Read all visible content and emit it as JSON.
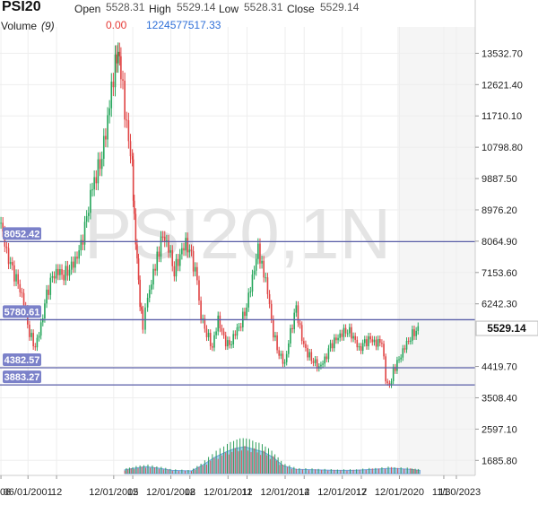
{
  "chart_data": {
    "type": "candlestick",
    "symbol": "PSI20",
    "watermark": "PSI20,1N",
    "ohlc_labels": {
      "open": "Open",
      "high": "High",
      "low": "Low",
      "close": "Close"
    },
    "ohlc_values": {
      "open": "5528.31",
      "high": "5529.14",
      "low": "5528.31",
      "close": "5529.14"
    },
    "volume_label": "Volume",
    "volume_period": "(9)",
    "volume_values": {
      "current": "0.00",
      "average": "1224577517.33"
    },
    "last_price": "5529.14",
    "y_ticks": [
      "13532.70",
      "12621.40",
      "11710.10",
      "10798.80",
      "9887.50",
      "8976.20",
      "8064.90",
      "7153.60",
      "6242.30",
      "4419.70",
      "3508.40",
      "2597.10",
      "1685.80"
    ],
    "ylim": [
      1250,
      14300
    ],
    "x_ticks": [
      {
        "label": "06",
        "date": 2000.0
      },
      {
        "label": "06/01/2001",
        "date": 2001.42
      },
      {
        "label": "12",
        "date": 2002.92
      },
      {
        "label": "12/01/2005",
        "date": 2005.92
      },
      {
        "label": "12",
        "date": 2006.92
      },
      {
        "label": "12/01/2008",
        "date": 2008.92
      },
      {
        "label": "12",
        "date": 2009.92
      },
      {
        "label": "12/01/2011",
        "date": 2011.92
      },
      {
        "label": "12",
        "date": 2012.92
      },
      {
        "label": "12/01/2014",
        "date": 2014.92
      },
      {
        "label": "12",
        "date": 2015.92
      },
      {
        "label": "12/01/2017",
        "date": 2017.92
      },
      {
        "label": "12",
        "date": 2018.92
      },
      {
        "label": "12/01/2020",
        "date": 2020.92
      },
      {
        "label": "11",
        "date": 2023.25
      },
      {
        "label": "11/30/2023",
        "date": 2023.91
      }
    ],
    "xlim": [
      1999.95,
      2024.9
    ],
    "h_levels": [
      {
        "label": "8052.42",
        "value": 8052.42
      },
      {
        "label": "5780.61",
        "value": 5780.61
      },
      {
        "label": "4382.57",
        "value": 4382.57
      },
      {
        "label": "3883.27",
        "value": 3883.27
      }
    ],
    "price_path": [
      [
        2000.0,
        8600
      ],
      [
        2000.3,
        7700
      ],
      [
        2000.6,
        7200
      ],
      [
        2000.9,
        6800
      ],
      [
        2001.2,
        6300
      ],
      [
        2001.5,
        5400
      ],
      [
        2001.8,
        5000
      ],
      [
        2002.1,
        5600
      ],
      [
        2002.4,
        6500
      ],
      [
        2002.7,
        7000
      ],
      [
        2003.0,
        7200
      ],
      [
        2003.3,
        7100
      ],
      [
        2003.6,
        7300
      ],
      [
        2003.9,
        7500
      ],
      [
        2004.2,
        7900
      ],
      [
        2004.5,
        8700
      ],
      [
        2004.8,
        9700
      ],
      [
        2005.0,
        10000
      ],
      [
        2005.3,
        10600
      ],
      [
        2005.6,
        11600
      ],
      [
        2005.8,
        12400
      ],
      [
        2006.0,
        13300
      ],
      [
        2006.15,
        13700
      ],
      [
        2006.3,
        13100
      ],
      [
        2006.5,
        11800
      ],
      [
        2006.7,
        10900
      ],
      [
        2006.9,
        10200
      ],
      [
        2007.0,
        8700
      ],
      [
        2007.15,
        7600
      ],
      [
        2007.3,
        6300
      ],
      [
        2007.45,
        5600
      ],
      [
        2007.7,
        6400
      ],
      [
        2008.0,
        7100
      ],
      [
        2008.2,
        7600
      ],
      [
        2008.5,
        8200
      ],
      [
        2008.8,
        7900
      ],
      [
        2009.1,
        7200
      ],
      [
        2009.4,
        7700
      ],
      [
        2009.7,
        8000
      ],
      [
        2010.0,
        7600
      ],
      [
        2010.3,
        6900
      ],
      [
        2010.5,
        5900
      ],
      [
        2010.8,
        5400
      ],
      [
        2011.1,
        5000
      ],
      [
        2011.4,
        5800
      ],
      [
        2011.7,
        5200
      ],
      [
        2012.0,
        5000
      ],
      [
        2012.3,
        5400
      ],
      [
        2012.6,
        5700
      ],
      [
        2012.9,
        6200
      ],
      [
        2013.2,
        7000
      ],
      [
        2013.5,
        7800
      ],
      [
        2013.7,
        7400
      ],
      [
        2014.0,
        6600
      ],
      [
        2014.3,
        5400
      ],
      [
        2014.6,
        4800
      ],
      [
        2014.9,
        4500
      ],
      [
        2015.2,
        5400
      ],
      [
        2015.5,
        6100
      ],
      [
        2015.8,
        5200
      ],
      [
        2016.1,
        4800
      ],
      [
        2016.4,
        4600
      ],
      [
        2016.7,
        4400
      ],
      [
        2017.0,
        4600
      ],
      [
        2017.3,
        5000
      ],
      [
        2017.6,
        5200
      ],
      [
        2017.9,
        5400
      ],
      [
        2018.2,
        5500
      ],
      [
        2018.5,
        5300
      ],
      [
        2018.8,
        4900
      ],
      [
        2019.1,
        5100
      ],
      [
        2019.4,
        5200
      ],
      [
        2019.7,
        5100
      ],
      [
        2020.0,
        5200
      ],
      [
        2020.2,
        4000
      ],
      [
        2020.4,
        3800
      ],
      [
        2020.6,
        4300
      ],
      [
        2020.9,
        4600
      ],
      [
        2021.2,
        5000
      ],
      [
        2021.5,
        5300
      ],
      [
        2021.8,
        5500
      ],
      [
        2022.0,
        5529
      ]
    ],
    "volume_path": [
      [
        2006.5,
        0.07
      ],
      [
        2007.0,
        0.1
      ],
      [
        2007.6,
        0.13
      ],
      [
        2008.3,
        0.1
      ],
      [
        2009.0,
        0.06
      ],
      [
        2010.0,
        0.05
      ],
      [
        2010.6,
        0.16
      ],
      [
        2011.2,
        0.3
      ],
      [
        2011.8,
        0.4
      ],
      [
        2012.3,
        0.47
      ],
      [
        2012.8,
        0.5
      ],
      [
        2013.3,
        0.45
      ],
      [
        2013.8,
        0.4
      ],
      [
        2014.3,
        0.3
      ],
      [
        2014.8,
        0.15
      ],
      [
        2015.5,
        0.08
      ],
      [
        2016.5,
        0.07
      ],
      [
        2017.5,
        0.06
      ],
      [
        2018.5,
        0.06
      ],
      [
        2019.5,
        0.08
      ],
      [
        2020.5,
        0.1
      ],
      [
        2021.5,
        0.08
      ],
      [
        2022.0,
        0.06
      ]
    ],
    "grid": true
  }
}
